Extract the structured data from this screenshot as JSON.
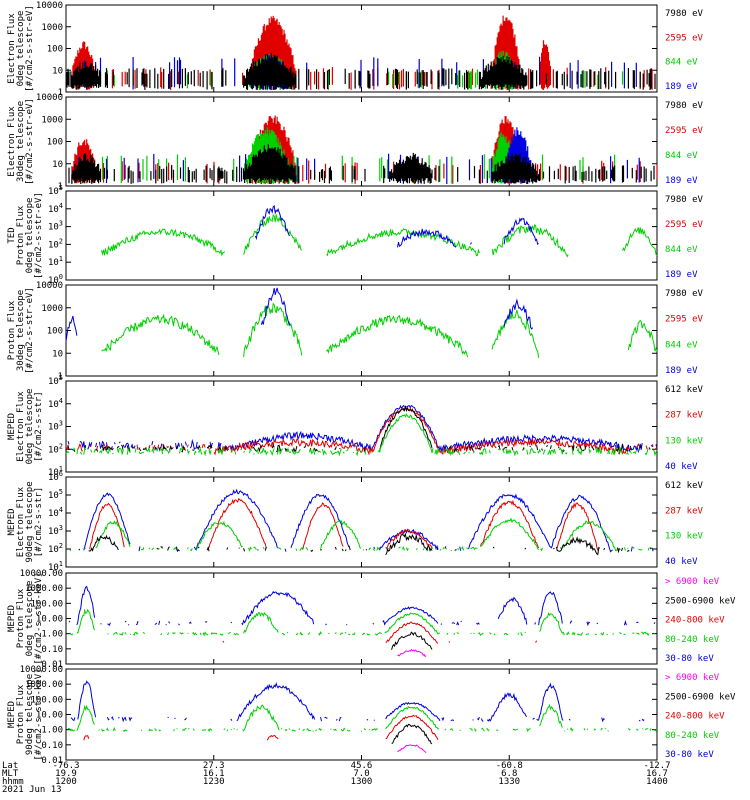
{
  "colors": {
    "black": "#000000",
    "red": "#e00000",
    "green": "#00d000",
    "blue": "#0000e0",
    "magenta": "#ff00ff"
  },
  "footer": {
    "labels": [
      "Lat",
      "MLT",
      "hhmm",
      "2021 Jun 13"
    ],
    "columns": [
      {
        "lat": "-76.3",
        "mlt": "19.9",
        "hhmm": "1200"
      },
      {
        "lat": "27.3",
        "mlt": "16.1",
        "hhmm": "1230"
      },
      {
        "lat": "45.6",
        "mlt": "7.0",
        "hhmm": "1300"
      },
      {
        "lat": "-60.8",
        "mlt": "6.8",
        "hhmm": "1330"
      },
      {
        "lat": "-12.7",
        "mlt": "16.7",
        "hhmm": "1400"
      }
    ]
  },
  "chart_data": [
    {
      "type": "line",
      "ylabel": [
        "Electron Flux",
        "0deg telescope",
        "[#/cm2-s-str-eV]"
      ],
      "yscale": "log",
      "ylim": [
        1,
        10000
      ],
      "yticks": [
        "10000",
        "1000",
        "100",
        "10",
        "1"
      ],
      "xlim": [
        "1200",
        "1400"
      ],
      "series": [
        {
          "name": "7980 eV",
          "color": "black"
        },
        {
          "name": "2595 eV",
          "color": "red"
        },
        {
          "name": "844 eV",
          "color": "green"
        },
        {
          "name": "189 eV",
          "color": "blue"
        }
      ]
    },
    {
      "type": "line",
      "ylabel": [
        "Electron Flux",
        "30deg telescope",
        "[#/cm2-s-str-eV]"
      ],
      "yscale": "log",
      "ylim": [
        1,
        10000
      ],
      "yticks": [
        "10000",
        "1000",
        "100",
        "10",
        "1"
      ],
      "series": [
        {
          "name": "7980 eV",
          "color": "black"
        },
        {
          "name": "2595 eV",
          "color": "red"
        },
        {
          "name": "844 eV",
          "color": "green"
        },
        {
          "name": "189 eV",
          "color": "blue"
        }
      ]
    },
    {
      "type": "line",
      "ylabel": [
        "TED",
        "Proton Flux",
        "0deg telescope",
        "[#/cm2-s-str-eV]"
      ],
      "yscale": "log",
      "ylim": [
        1,
        100000
      ],
      "yticks": [
        "10^5",
        "10^4",
        "10^3",
        "10^2",
        "10^1",
        "10^0"
      ],
      "series": [
        {
          "name": "7980 eV",
          "color": "black"
        },
        {
          "name": "2595 eV",
          "color": "red"
        },
        {
          "name": "844 eV",
          "color": "green"
        },
        {
          "name": "189 eV",
          "color": "blue"
        }
      ]
    },
    {
      "type": "line",
      "ylabel": [
        "Proton Flux",
        "30deg telescope",
        "[#/cm2-s-str-eV]"
      ],
      "yscale": "log",
      "ylim": [
        1,
        10000
      ],
      "yticks": [
        "10000",
        "1000",
        "100",
        "10",
        "1"
      ],
      "series": [
        {
          "name": "7980 eV",
          "color": "black"
        },
        {
          "name": "2595 eV",
          "color": "red"
        },
        {
          "name": "844 eV",
          "color": "green"
        },
        {
          "name": "189 eV",
          "color": "blue"
        }
      ]
    },
    {
      "type": "line",
      "ylabel": [
        "MEPED",
        "Electron Flux",
        "0deg telescope",
        "[#/cm2-s-str]"
      ],
      "yscale": "log",
      "ylim": [
        10,
        100000
      ],
      "yticks": [
        "10^5",
        "10^4",
        "10^3",
        "10^2",
        "10^1"
      ],
      "series": [
        {
          "name": "612 keV",
          "color": "black"
        },
        {
          "name": "287 keV",
          "color": "red"
        },
        {
          "name": "130 keV",
          "color": "green"
        },
        {
          "name": "40 keV",
          "color": "blue"
        }
      ]
    },
    {
      "type": "line",
      "ylabel": [
        "MEPED",
        "Electron Flux",
        "90deg telescope",
        "[#/cm2-s-str]"
      ],
      "yscale": "log",
      "ylim": [
        10,
        1000000
      ],
      "yticks": [
        "10^6",
        "10^5",
        "10^4",
        "10^3",
        "10^2",
        "10^1"
      ],
      "series": [
        {
          "name": "612 keV",
          "color": "black"
        },
        {
          "name": "287 keV",
          "color": "red"
        },
        {
          "name": "130 keV",
          "color": "green"
        },
        {
          "name": "40 keV",
          "color": "blue"
        }
      ]
    },
    {
      "type": "line",
      "ylabel": [
        "MEPED",
        "Proton Flux",
        "0deg telescope",
        "[#/cm2-s-str-keV]"
      ],
      "yscale": "log",
      "ylim": [
        0.01,
        10000
      ],
      "yticks": [
        "10000.00",
        "1000.00",
        "100.00",
        "10.00",
        "1.00",
        "0.10",
        "0.01"
      ],
      "series": [
        {
          "name": "> 6900 keV",
          "color": "magenta"
        },
        {
          "name": "2500-6900 keV",
          "color": "black"
        },
        {
          "name": "240-800 keV",
          "color": "red"
        },
        {
          "name": "80-240 keV",
          "color": "green"
        },
        {
          "name": "30-80 keV",
          "color": "blue"
        }
      ]
    },
    {
      "type": "line",
      "ylabel": [
        "MEPED",
        "Proton Flux",
        "90deg telescope",
        "[#/cm2-s-str-keV]"
      ],
      "yscale": "log",
      "ylim": [
        0.01,
        10000
      ],
      "yticks": [
        "10000.00",
        "1000.00",
        "100.00",
        "10.00",
        "1.00",
        "0.10",
        "0.01"
      ],
      "series": [
        {
          "name": "> 6900 keV",
          "color": "magenta"
        },
        {
          "name": "2500-6900 keV",
          "color": "black"
        },
        {
          "name": "240-800 keV",
          "color": "red"
        },
        {
          "name": "80-240 keV",
          "color": "green"
        },
        {
          "name": "30-80 keV",
          "color": "blue"
        }
      ]
    }
  ]
}
